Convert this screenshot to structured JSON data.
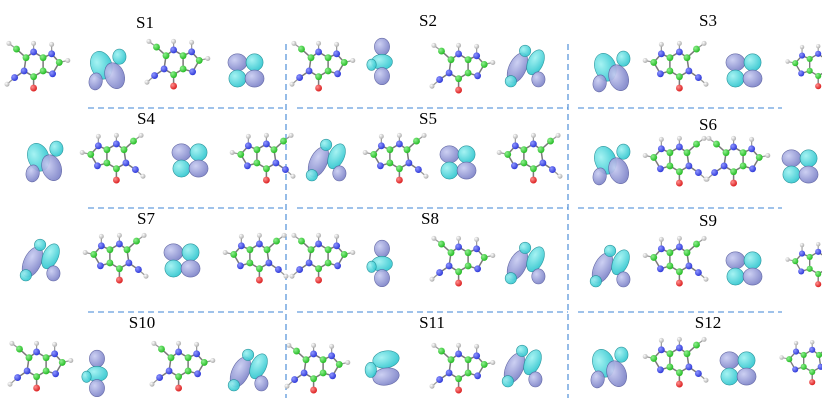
{
  "figure": {
    "states": [
      {
        "label": "S1"
      },
      {
        "label": "S2"
      },
      {
        "label": "S3"
      },
      {
        "label": "S4"
      },
      {
        "label": "S5"
      },
      {
        "label": "S6"
      },
      {
        "label": "S7"
      },
      {
        "label": "S8"
      },
      {
        "label": "S9"
      },
      {
        "label": "S10"
      },
      {
        "label": "S11"
      },
      {
        "label": "S12"
      }
    ]
  },
  "colors": {
    "background": "#ffffff",
    "divider": "#3f86d6",
    "carbon_atom": "#1fb81f",
    "nitrogen_atom": "#2a35d6",
    "oxygen_atom": "#d91a1a",
    "hydrogen_atom": "#d8d8d8",
    "lobe_cyan": "#2fc6cf",
    "lobe_purple": "#7c82c8",
    "label_text": "#000000"
  },
  "icons": {
    "molecule": "purine-molecule-icon",
    "orbital_lobes": "orbital-density-icon"
  }
}
